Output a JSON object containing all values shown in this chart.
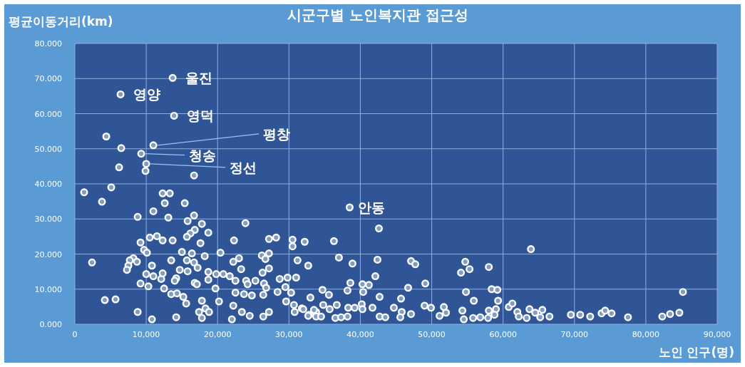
{
  "chart_data": {
    "type": "scatter",
    "title": "시군구별 노인복지관 접근성",
    "xlabel": "노인 인구(명)",
    "ylabel": "평균이동거리(km)",
    "xlim": [
      0,
      90000
    ],
    "ylim": [
      0,
      80
    ],
    "xticks": [
      0,
      {
        "value": 10000,
        "label": "10,000"
      },
      {
        "value": 20000,
        "label": "20,000"
      },
      {
        "value": 30000,
        "label": "30,000"
      },
      {
        "value": 40000,
        "label": "40,000"
      },
      {
        "value": 50000,
        "label": "50,000"
      },
      {
        "value": 60000,
        "label": "60,000"
      },
      {
        "value": 70000,
        "label": "70,000"
      },
      {
        "value": 80000,
        "label": "80,000"
      },
      {
        "value": 90000,
        "label": "90,000"
      }
    ],
    "yticks": [
      {
        "value": 0,
        "label": "0.000"
      },
      {
        "value": 10,
        "label": "10.000"
      },
      {
        "value": 20,
        "label": "20.000"
      },
      {
        "value": 30,
        "label": "30.000"
      },
      {
        "value": 40,
        "label": "40.000"
      },
      {
        "value": 50,
        "label": "50.000"
      },
      {
        "value": 60,
        "label": "60.000"
      },
      {
        "value": 70,
        "label": "70.000"
      },
      {
        "value": 80,
        "label": "80.000"
      }
    ],
    "grid": true,
    "marker": "circle",
    "annotations": [
      {
        "text": "울진",
        "x": 13700,
        "y": 70.2
      },
      {
        "text": "영양",
        "x": 6400,
        "y": 65.5
      },
      {
        "text": "영덕",
        "x": 13900,
        "y": 59.4
      },
      {
        "text": "평창",
        "x": 11000,
        "y": 51.0
      },
      {
        "text": "청송",
        "x": 9300,
        "y": 48.6
      },
      {
        "text": "정선",
        "x": 10000,
        "y": 45.7
      },
      {
        "text": "안동",
        "x": 38500,
        "y": 33.3
      }
    ],
    "series": [
      {
        "color": "#ffffff",
        "x": [
          13700,
          6400,
          13900,
          11000,
          9300,
          10000,
          38500,
          4400,
          6500,
          6200,
          9900,
          16700,
          1300,
          5100,
          3800,
          12300,
          13300,
          12600,
          15400,
          11000,
          8800,
          13100,
          16700,
          15800,
          17800,
          16800,
          16200,
          18700,
          15700,
          23900,
          17600,
          22300,
          27200,
          28200,
          30500,
          30500,
          32200,
          9200,
          10500,
          11500,
          12300,
          13700,
          9700,
          10100,
          15000,
          16400,
          15700,
          18200,
          20400,
          23000,
          22200,
          26200,
          27200,
          26700,
          31200,
          32700,
          8200,
          8700,
          7700,
          7500,
          7300,
          10800,
          13500,
          16700,
          17200,
          23300,
          27200,
          26300,
          2400,
          14700,
          15800,
          18700,
          19800,
          20800,
          21700,
          10000,
          11000,
          12100,
          12300,
          14200,
          9200,
          10300,
          12500,
          14000,
          16800,
          17100,
          18700,
          19700,
          22500,
          24000,
          24200,
          25300,
          26500,
          26800,
          28700,
          29800,
          31000,
          29500,
          28400,
          30300,
          13500,
          14300,
          15200,
          15600,
          4200,
          5700,
          17800,
          20200,
          22500,
          23700,
          24800,
          26400,
          29600,
          30700,
          33000,
          8800,
          17400,
          18300,
          18800,
          17800,
          14200,
          10800,
          22200,
          22000,
          23400,
          24500,
          26400,
          27200,
          30800,
          31800,
          32800,
          33800,
          42600,
          36300,
          37000,
          38900,
          42400,
          47100,
          47700,
          54700,
          55300,
          54100,
          58000,
          63900,
          42100,
          49100,
          38600,
          34700,
          35600,
          38200,
          40300,
          41200,
          40400,
          46700,
          42700,
          45700,
          54800,
          58400,
          59200,
          55900,
          59300,
          32000,
          34800,
          33500,
          35700,
          36700,
          38300,
          39200,
          40200,
          40300,
          41700,
          44700,
          45800,
          49000,
          49900,
          51700,
          52000,
          54300,
          58000,
          59000,
          60800,
          61300,
          63700,
          32700,
          33800,
          34500,
          36500,
          37300,
          38200,
          42700,
          43500,
          45600,
          47100,
          51100,
          54500,
          55800,
          56800,
          57900,
          58800,
          62000,
          62200,
          63300,
          85200,
          64500,
          65500,
          65200,
          66500,
          69500,
          70800,
          72200,
          73800,
          74300,
          75200,
          77500,
          82300,
          83400,
          84700
        ],
        "values": [
          70.2,
          65.5,
          59.4,
          51.0,
          48.6,
          45.7,
          33.3,
          53.5,
          50.2,
          44.7,
          43.7,
          42.4,
          37.6,
          39.0,
          34.9,
          37.3,
          37.3,
          34.5,
          34.5,
          32.2,
          30.6,
          30.4,
          31.0,
          29.4,
          28.6,
          26.9,
          25.9,
          26.1,
          24.9,
          28.8,
          23.1,
          23.9,
          24.3,
          24.7,
          24.1,
          22.2,
          23.5,
          23.3,
          24.7,
          25.1,
          23.9,
          23.9,
          21.2,
          20.4,
          20.6,
          20.2,
          18.2,
          19.4,
          20.4,
          18.8,
          17.8,
          19.6,
          20.2,
          18.6,
          18.2,
          16.7,
          18.8,
          17.8,
          18.2,
          16.7,
          15.5,
          16.7,
          18.2,
          17.6,
          16.1,
          15.7,
          15.9,
          14.7,
          17.6,
          15.5,
          15.1,
          14.9,
          14.3,
          14.3,
          13.7,
          14.3,
          13.7,
          12.9,
          14.5,
          13.1,
          11.6,
          10.8,
          10.2,
          12.4,
          11.8,
          11.4,
          12.7,
          10.2,
          12.4,
          12.4,
          11.4,
          12.4,
          11.6,
          10.4,
          12.9,
          13.3,
          13.3,
          10.6,
          9.2,
          9.0,
          8.6,
          8.8,
          7.8,
          5.9,
          6.9,
          7.1,
          6.7,
          6.5,
          9.0,
          8.6,
          8.2,
          8.4,
          6.5,
          5.5,
          7.6,
          3.5,
          3.5,
          4.5,
          3.5,
          1.8,
          2.0,
          1.4,
          5.3,
          1.4,
          3.5,
          2.4,
          2.2,
          3.5,
          3.5,
          4.5,
          2.7,
          3.5,
          27.3,
          23.7,
          19.0,
          17.3,
          18.4,
          18.0,
          17.1,
          17.8,
          15.7,
          14.7,
          16.3,
          21.4,
          13.7,
          11.6,
          11.8,
          9.8,
          8.4,
          9.6,
          11.4,
          11.2,
          9.2,
          10.4,
          7.8,
          7.3,
          9.2,
          10.0,
          9.8,
          6.7,
          6.7,
          4.3,
          5.5,
          4.1,
          4.3,
          5.5,
          4.7,
          4.7,
          5.7,
          4.3,
          4.7,
          4.7,
          3.5,
          5.3,
          4.7,
          4.9,
          3.3,
          3.9,
          3.9,
          4.3,
          4.9,
          5.9,
          4.3,
          2.4,
          2.2,
          2.2,
          1.8,
          2.0,
          2.2,
          2.2,
          2.0,
          2.0,
          2.9,
          2.4,
          1.4,
          1.8,
          2.0,
          1.8,
          2.7,
          3.5,
          2.2,
          1.8,
          9.2,
          3.3,
          4.1,
          2.0,
          2.2,
          2.7,
          2.7,
          2.2,
          3.1,
          3.9,
          3.1,
          2.0,
          2.2,
          2.9,
          3.3
        ]
      }
    ]
  }
}
